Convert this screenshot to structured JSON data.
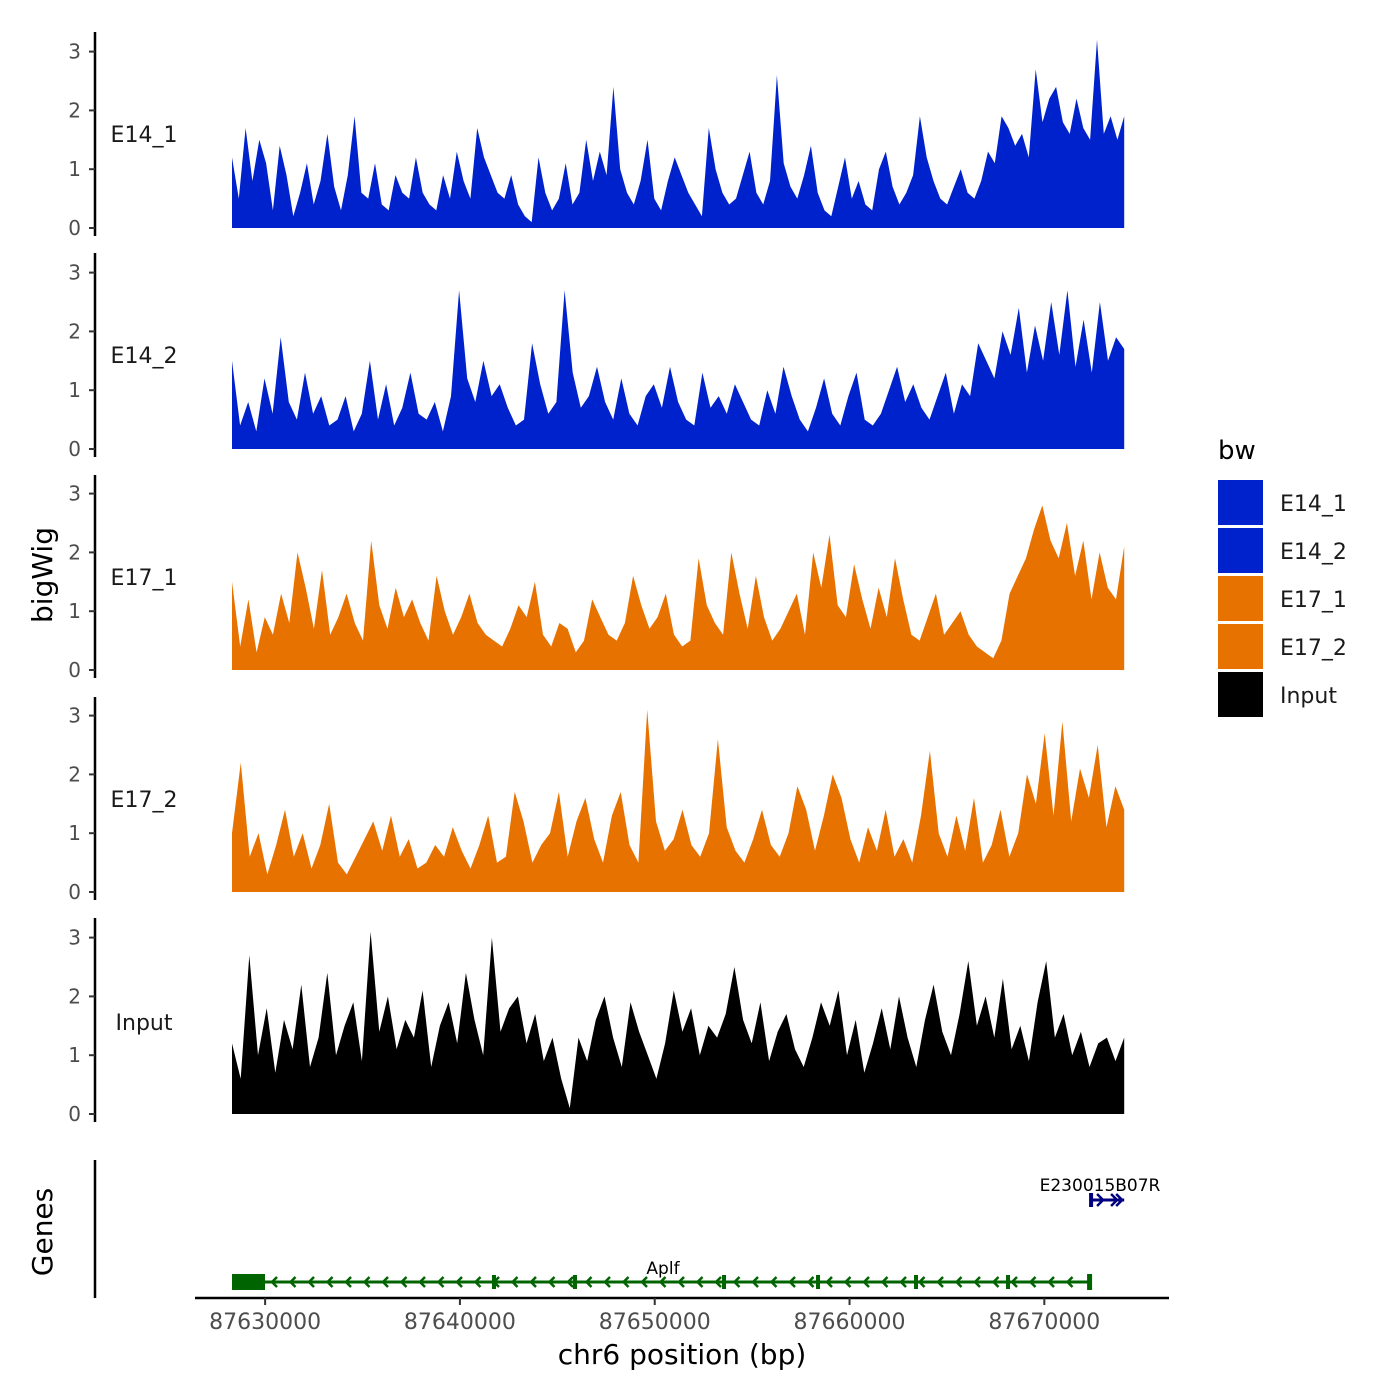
{
  "chart_data": {
    "type": "area",
    "title": "",
    "xlabel": "chr6 position (bp)",
    "ylabel": "bigWig",
    "genes_label": "Genes",
    "xlim": [
      87626400,
      87676400
    ],
    "x_range": [
      87628300,
      87674100
    ],
    "x_ticks": [
      87630000,
      87640000,
      87650000,
      87660000,
      87670000
    ],
    "ylim": [
      0,
      3.3
    ],
    "y_ticks": [
      0,
      1,
      2,
      3
    ],
    "legend": {
      "title": "bw",
      "position": "right",
      "entries": [
        {
          "name": "E14_1",
          "color": "#0022cc"
        },
        {
          "name": "E14_2",
          "color": "#0022cc"
        },
        {
          "name": "E17_1",
          "color": "#e87200"
        },
        {
          "name": "E17_2",
          "color": "#e87200"
        },
        {
          "name": "Input",
          "color": "#000000"
        }
      ]
    },
    "series": [
      {
        "name": "E14_1",
        "color": "#0022cc",
        "values": [
          1.2,
          0.5,
          1.7,
          0.8,
          1.5,
          1.1,
          0.3,
          1.4,
          0.9,
          0.2,
          0.6,
          1.1,
          0.4,
          0.8,
          1.6,
          0.7,
          0.3,
          0.9,
          1.9,
          0.6,
          0.5,
          1.1,
          0.4,
          0.3,
          0.9,
          0.6,
          0.5,
          1.2,
          0.6,
          0.4,
          0.3,
          0.9,
          0.5,
          1.3,
          0.8,
          0.5,
          1.7,
          1.2,
          0.9,
          0.6,
          0.5,
          0.9,
          0.4,
          0.2,
          0.1,
          1.2,
          0.6,
          0.3,
          0.5,
          1.1,
          0.4,
          0.6,
          1.5,
          0.8,
          1.3,
          0.9,
          2.4,
          1.0,
          0.6,
          0.4,
          0.8,
          1.5,
          0.5,
          0.3,
          0.8,
          1.2,
          0.9,
          0.6,
          0.4,
          0.2,
          1.7,
          1.0,
          0.6,
          0.4,
          0.5,
          0.9,
          1.3,
          0.6,
          0.4,
          0.8,
          2.6,
          1.1,
          0.7,
          0.5,
          0.9,
          1.4,
          0.6,
          0.3,
          0.2,
          0.7,
          1.2,
          0.5,
          0.8,
          0.4,
          0.3,
          1.0,
          1.3,
          0.7,
          0.4,
          0.6,
          0.9,
          1.9,
          1.2,
          0.8,
          0.5,
          0.4,
          0.7,
          1.0,
          0.6,
          0.5,
          0.8,
          1.3,
          1.1,
          1.9,
          1.7,
          1.4,
          1.6,
          1.2,
          2.7,
          1.8,
          2.2,
          2.4,
          1.8,
          1.6,
          2.2,
          1.7,
          1.5,
          3.2,
          1.6,
          1.9,
          1.5,
          1.9
        ]
      },
      {
        "name": "E14_2",
        "color": "#0022cc",
        "values": [
          1.5,
          0.4,
          0.8,
          0.3,
          1.2,
          0.6,
          1.9,
          0.8,
          0.5,
          1.3,
          0.6,
          0.9,
          0.4,
          0.5,
          0.9,
          0.3,
          0.6,
          1.5,
          0.5,
          1.1,
          0.4,
          0.7,
          1.3,
          0.6,
          0.5,
          0.8,
          0.3,
          0.9,
          2.7,
          1.2,
          0.8,
          1.5,
          0.9,
          1.1,
          0.7,
          0.4,
          0.5,
          1.8,
          1.1,
          0.6,
          0.8,
          2.7,
          1.3,
          0.7,
          0.9,
          1.4,
          0.8,
          0.5,
          1.2,
          0.6,
          0.4,
          0.9,
          1.1,
          0.7,
          1.4,
          0.8,
          0.5,
          0.4,
          1.3,
          0.7,
          0.9,
          0.6,
          1.1,
          0.8,
          0.5,
          0.4,
          1.0,
          0.6,
          1.4,
          0.9,
          0.5,
          0.3,
          0.7,
          1.2,
          0.6,
          0.4,
          0.9,
          1.3,
          0.5,
          0.4,
          0.6,
          1.0,
          1.4,
          0.8,
          1.1,
          0.7,
          0.5,
          0.9,
          1.3,
          0.6,
          1.1,
          0.9,
          1.8,
          1.5,
          1.2,
          2.0,
          1.6,
          2.4,
          1.3,
          2.1,
          1.5,
          2.5,
          1.6,
          2.7,
          1.4,
          2.2,
          1.3,
          2.5,
          1.5,
          1.9,
          1.7
        ]
      },
      {
        "name": "E17_1",
        "color": "#e87200",
        "values": [
          1.5,
          0.4,
          1.2,
          0.3,
          0.9,
          0.6,
          1.3,
          0.8,
          2.0,
          1.4,
          0.7,
          1.7,
          0.6,
          0.9,
          1.3,
          0.8,
          0.5,
          2.2,
          1.1,
          0.7,
          1.4,
          0.9,
          1.2,
          0.8,
          0.5,
          1.6,
          1.0,
          0.6,
          0.9,
          1.3,
          0.8,
          0.6,
          0.5,
          0.4,
          0.7,
          1.1,
          0.9,
          1.5,
          0.6,
          0.4,
          0.8,
          0.7,
          0.3,
          0.5,
          1.2,
          0.9,
          0.6,
          0.5,
          0.8,
          1.6,
          1.1,
          0.7,
          0.9,
          1.3,
          0.6,
          0.4,
          0.5,
          1.9,
          1.1,
          0.8,
          0.6,
          2.0,
          1.3,
          0.7,
          1.6,
          0.9,
          0.5,
          0.7,
          1.0,
          1.3,
          0.6,
          2.0,
          1.4,
          2.3,
          1.1,
          0.9,
          1.8,
          1.2,
          0.7,
          1.4,
          0.9,
          1.9,
          1.2,
          0.6,
          0.5,
          0.9,
          1.3,
          0.6,
          0.8,
          1.0,
          0.6,
          0.4,
          0.3,
          0.2,
          0.5,
          1.3,
          1.6,
          1.9,
          2.4,
          2.8,
          2.2,
          1.9,
          2.5,
          1.6,
          2.2,
          1.2,
          2.0,
          1.4,
          1.2,
          2.1
        ]
      },
      {
        "name": "E17_2",
        "color": "#e87200",
        "values": [
          1.0,
          2.2,
          0.6,
          1.0,
          0.3,
          0.8,
          1.4,
          0.6,
          1.0,
          0.4,
          0.8,
          1.5,
          0.5,
          0.3,
          0.6,
          0.9,
          1.2,
          0.7,
          1.3,
          0.6,
          0.9,
          0.4,
          0.5,
          0.8,
          0.6,
          1.1,
          0.7,
          0.4,
          0.8,
          1.3,
          0.5,
          0.6,
          1.7,
          1.2,
          0.5,
          0.8,
          1.0,
          1.7,
          0.6,
          1.2,
          1.6,
          0.9,
          0.5,
          1.3,
          1.7,
          0.8,
          0.5,
          3.1,
          1.2,
          0.7,
          0.9,
          1.4,
          0.8,
          0.6,
          1.0,
          2.6,
          1.1,
          0.7,
          0.5,
          0.9,
          1.4,
          0.8,
          0.6,
          1.0,
          1.8,
          1.4,
          0.7,
          1.3,
          2.0,
          1.6,
          0.9,
          0.5,
          1.1,
          0.7,
          1.4,
          0.6,
          0.9,
          0.5,
          1.3,
          2.4,
          1.0,
          0.6,
          1.3,
          0.7,
          1.6,
          0.5,
          0.8,
          1.4,
          0.6,
          1.0,
          2.0,
          1.5,
          2.7,
          1.3,
          2.9,
          1.2,
          2.1,
          1.6,
          2.5,
          1.1,
          1.8,
          1.4
        ]
      },
      {
        "name": "Input",
        "color": "#000000",
        "values": [
          1.2,
          0.6,
          2.7,
          1.0,
          1.8,
          0.7,
          1.6,
          1.1,
          2.2,
          0.8,
          1.3,
          2.4,
          1.0,
          1.5,
          1.9,
          0.9,
          3.1,
          1.4,
          2.0,
          1.1,
          1.6,
          1.3,
          2.1,
          0.8,
          1.5,
          1.9,
          1.2,
          2.4,
          1.6,
          1.0,
          3.0,
          1.4,
          1.8,
          2.0,
          1.2,
          1.7,
          0.9,
          1.3,
          0.6,
          0.1,
          1.3,
          0.9,
          1.6,
          2.0,
          1.3,
          0.8,
          1.9,
          1.4,
          1.0,
          0.6,
          1.2,
          2.1,
          1.4,
          1.8,
          1.0,
          1.5,
          1.3,
          1.7,
          2.5,
          1.6,
          1.2,
          1.9,
          0.9,
          1.4,
          1.7,
          1.1,
          0.8,
          1.3,
          1.9,
          1.5,
          2.1,
          1.0,
          1.6,
          0.7,
          1.2,
          1.8,
          1.1,
          2.0,
          1.3,
          0.8,
          1.6,
          2.2,
          1.4,
          1.0,
          1.7,
          2.6,
          1.5,
          2.0,
          1.3,
          2.3,
          1.1,
          1.5,
          0.9,
          1.9,
          2.6,
          1.3,
          1.7,
          1.0,
          1.4,
          0.8,
          1.2,
          1.3,
          0.9,
          1.3
        ]
      }
    ],
    "genes": [
      {
        "name": "Aplf",
        "color": "#006400",
        "strand": "-",
        "start": 87628300,
        "end": 87672400
      },
      {
        "name": "E230015B07R",
        "color": "#000080",
        "strand": "+",
        "start": 87672400,
        "end": 87674100
      }
    ]
  }
}
